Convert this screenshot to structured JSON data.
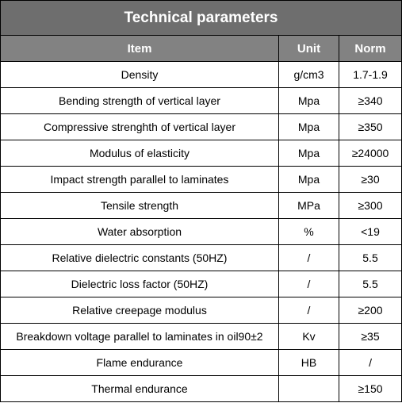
{
  "header": {
    "title": "Technical parameters"
  },
  "table": {
    "columns": [
      "Item",
      "Unit",
      "Norm"
    ],
    "rows": [
      [
        "Density",
        "g/cm3",
        "1.7-1.9"
      ],
      [
        "Bending strength of vertical layer",
        "Mpa",
        "≥340"
      ],
      [
        "Compressive strenghth of vertical layer",
        "Mpa",
        "≥350"
      ],
      [
        "Modulus of elasticity",
        "Mpa",
        "≥24000"
      ],
      [
        "Impact strength parallel to laminates",
        "Mpa",
        "≥30"
      ],
      [
        "Tensile strength",
        "MPa",
        "≥300"
      ],
      [
        "Water absorption",
        "%",
        "<19"
      ],
      [
        "Relative dielectric constants (50HZ)",
        "/",
        "5.5"
      ],
      [
        "Dielectric loss factor (50HZ)",
        "/",
        "5.5"
      ],
      [
        "Relative creepage modulus",
        "/",
        "≥200"
      ],
      [
        "Breakdown voltage parallel to laminates in oil90±2",
        "Kv",
        "≥35"
      ],
      [
        "Flame endurance",
        "HB",
        "/"
      ],
      [
        "Thermal endurance",
        null,
        "≥150"
      ]
    ]
  }
}
